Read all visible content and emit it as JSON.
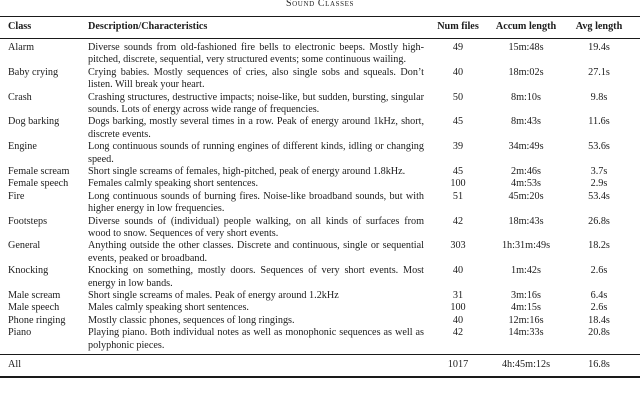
{
  "page": {
    "caption": "Sound Classes"
  },
  "table": {
    "columns": [
      "Class",
      "Description/Characteristics",
      "Num files",
      "Accum length",
      "Avg length"
    ],
    "rows": [
      {
        "class": "Alarm",
        "description": "Diverse sounds from old-fashioned fire bells to electronic beeps. Mostly high-pitched, discrete, sequential, very structured events; some continuous wailing.",
        "num_files": "49",
        "accum_length": "15m:48s",
        "avg_length": "19.4s"
      },
      {
        "class": "Baby crying",
        "description": "Crying babies. Mostly sequences of cries, also single sobs and squeals. Don’t listen. Will break your heart.",
        "num_files": "40",
        "accum_length": "18m:02s",
        "avg_length": "27.1s"
      },
      {
        "class": "Crash",
        "description": "Crashing structures, destructive impacts; noise-like, but sudden, bursting, singular sounds. Lots of energy across wide range of frequencies.",
        "num_files": "50",
        "accum_length": "8m:10s",
        "avg_length": "9.8s"
      },
      {
        "class": "Dog barking",
        "description": "Dogs barking, mostly several times in a row. Peak of energy around 1kHz, short, discrete events.",
        "num_files": "45",
        "accum_length": "8m:43s",
        "avg_length": "11.6s"
      },
      {
        "class": "Engine",
        "description": "Long continuous sounds of running engines of different kinds, idling or changing speed.",
        "num_files": "39",
        "accum_length": "34m:49s",
        "avg_length": "53.6s"
      },
      {
        "class": "Female scream",
        "description": "Short single screams of females, high-pitched, peak of energy around 1.8kHz.",
        "num_files": "45",
        "accum_length": "2m:46s",
        "avg_length": "3.7s"
      },
      {
        "class": "Female speech",
        "description": "Females calmly speaking short sentences.",
        "num_files": "100",
        "accum_length": "4m:53s",
        "avg_length": "2.9s"
      },
      {
        "class": "Fire",
        "description": "Long continuous sounds of burning fires. Noise-like broadband sounds, but with higher energy in low frequencies.",
        "num_files": "51",
        "accum_length": "45m:20s",
        "avg_length": "53.4s"
      },
      {
        "class": "Footsteps",
        "description": "Diverse sounds of (individual) people walking, on all kinds of surfaces from wood to snow. Sequences of very short events.",
        "num_files": "42",
        "accum_length": "18m:43s",
        "avg_length": "26.8s"
      },
      {
        "class": "General",
        "description": "Anything outside the other classes. Discrete and continuous, single or sequential events, peaked or broadband.",
        "num_files": "303",
        "accum_length": "1h:31m:49s",
        "avg_length": "18.2s"
      },
      {
        "class": "Knocking",
        "description": "Knocking on something, mostly doors. Sequences of very short events. Most energy in low bands.",
        "num_files": "40",
        "accum_length": "1m:42s",
        "avg_length": "2.6s"
      },
      {
        "class": "Male scream",
        "description": "Short single screams of males. Peak of energy around 1.2kHz",
        "num_files": "31",
        "accum_length": "3m:16s",
        "avg_length": "6.4s"
      },
      {
        "class": "Male speech",
        "description": "Males calmly speaking short sentences.",
        "num_files": "100",
        "accum_length": "4m:15s",
        "avg_length": "2.6s"
      },
      {
        "class": "Phone ringing",
        "description": "Mostly classic phones, sequences of long ringings.",
        "num_files": "40",
        "accum_length": "12m:16s",
        "avg_length": "18.4s"
      },
      {
        "class": "Piano",
        "description": "Playing piano. Both individual notes as well as monophonic sequences as well as polyphonic pieces.",
        "num_files": "42",
        "accum_length": "14m:33s",
        "avg_length": "20.8s"
      }
    ],
    "footer": {
      "class": "All",
      "description": "",
      "num_files": "1017",
      "accum_length": "4h:45m:12s",
      "avg_length": "16.8s"
    }
  }
}
